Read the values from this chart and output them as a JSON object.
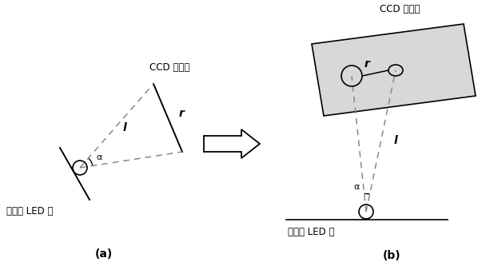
{
  "fig_width": 6.13,
  "fig_height": 3.38,
  "dpi": 100,
  "bg_color": "#ffffff",
  "line_color": "#000000",
  "dashed_color": "#888888",
  "label_a": "(a)",
  "label_b": "(b)",
  "ccd_label_a": "CCD 感光面",
  "ccd_label_b": "CCD 感光面",
  "led_label_a": "高亮度 LED 灯",
  "led_label_b": "高亮度 LED 灯",
  "r_label": "r",
  "l_label": "l",
  "alpha_label": "α",
  "arrow_body_color": "#ffffff"
}
